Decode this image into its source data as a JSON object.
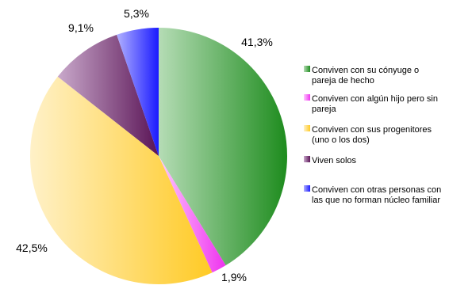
{
  "chart_data": {
    "type": "pie",
    "series": [
      {
        "label_lines": [
          "Conviven con su cónyuge o",
          "pareja de hecho"
        ],
        "value": 41.3,
        "value_label": "41,3%",
        "color_light": "#b5dcb5",
        "color_dark": "#1e8c1e"
      },
      {
        "label_lines": [
          "Conviven con algún hijo pero sin",
          "pareja"
        ],
        "value": 1.9,
        "value_label": "1,9%",
        "color_light": "#ffc8ff",
        "color_dark": "#ee33ee"
      },
      {
        "label_lines": [
          "Conviven con sus progenitores",
          "(uno o los dos)"
        ],
        "value": 42.5,
        "value_label": "42,5%",
        "color_light": "#fff1c8",
        "color_dark": "#ffca24"
      },
      {
        "label_lines": [
          "Viven solos"
        ],
        "value": 9.1,
        "value_label": "9,1%",
        "color_light": "#c9a9cb",
        "color_dark": "#5a1456"
      },
      {
        "label_lines": [
          "Conviven con otras personas con",
          "las que no forman núcleo familiar"
        ],
        "value": 5.3,
        "value_label": "5,3%",
        "color_light": "#b0b0ff",
        "color_dark": "#1a1aff"
      }
    ],
    "start": "12 o'clock",
    "direction": "clockwise",
    "legend_position": "right"
  }
}
